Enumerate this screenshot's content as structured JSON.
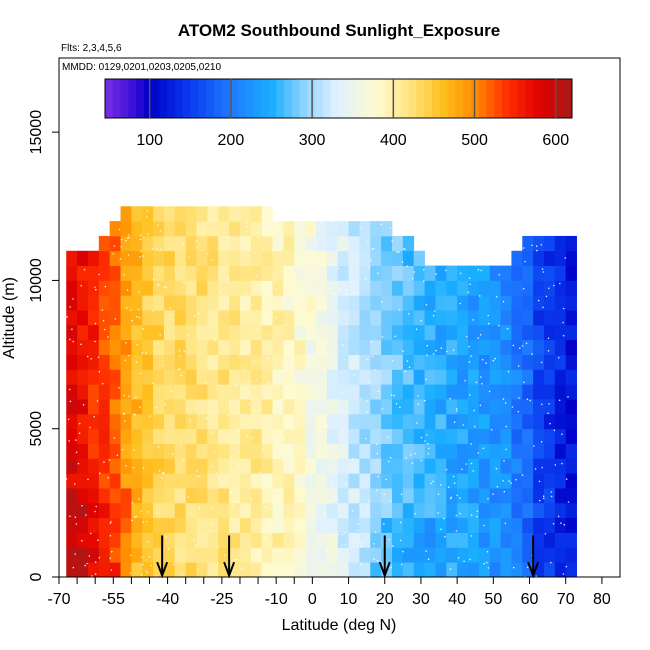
{
  "chart_data": {
    "type": "heatmap",
    "title": "ATOM2 Southbound Sunlight_Exposure",
    "subtitle_flights": "Flts: 2,3,4,5,6",
    "subtitle_dates": "MMDD: 0129,0201,0203,0205,0210",
    "xlabel": "Latitude (deg N)",
    "ylabel": "Altitude (m)",
    "xlim": [
      -70,
      85
    ],
    "ylim": [
      0,
      17500
    ],
    "x_ticks": [
      -70,
      -55,
      -40,
      -25,
      -10,
      0,
      10,
      20,
      30,
      40,
      50,
      60,
      70,
      80
    ],
    "x_tick_labels": [
      "-70",
      "-55",
      "-40",
      "-25",
      "-10",
      "0",
      "10",
      "20",
      "30",
      "40",
      "50",
      "60",
      "70",
      "80"
    ],
    "x_minor_ticks": [
      -65,
      -60,
      -50,
      -45,
      -35,
      -30,
      -20,
      -15,
      -5
    ],
    "y_ticks": [
      0,
      5000,
      10000,
      15000
    ],
    "y_tick_labels": [
      "0",
      "5000",
      "10000",
      "15000"
    ],
    "colorbar": {
      "min": 45,
      "max": 620,
      "ticks": [
        100,
        200,
        300,
        400,
        500,
        600
      ],
      "tick_labels": [
        "100",
        "200",
        "300",
        "400",
        "500",
        "600"
      ],
      "stops": [
        {
          "v": 45,
          "c": "#7b2fe6"
        },
        {
          "v": 80,
          "c": "#3a10d8"
        },
        {
          "v": 100,
          "c": "#0000c8"
        },
        {
          "v": 150,
          "c": "#0a3cf0"
        },
        {
          "v": 200,
          "c": "#1e7aff"
        },
        {
          "v": 250,
          "c": "#1aaeff"
        },
        {
          "v": 290,
          "c": "#8fd4ff"
        },
        {
          "v": 330,
          "c": "#dff1ff"
        },
        {
          "v": 380,
          "c": "#fffbd0"
        },
        {
          "v": 420,
          "c": "#ffe480"
        },
        {
          "v": 460,
          "c": "#ffc020"
        },
        {
          "v": 500,
          "c": "#ff8c00"
        },
        {
          "v": 540,
          "c": "#ff3000"
        },
        {
          "v": 580,
          "c": "#e00000"
        },
        {
          "v": 620,
          "c": "#a81a1a"
        }
      ]
    },
    "latitude_bins": {
      "start": -68,
      "end": 71,
      "step": 3
    },
    "altitude_bin_height_m": 500,
    "field_description_values": {
      "south_edge_value": 590,
      "lat_anchor": [
        -68,
        -55,
        -45,
        -30,
        -15,
        -5,
        5,
        15,
        25,
        35,
        45,
        55,
        62,
        71
      ],
      "value_anchor": [
        590,
        520,
        440,
        420,
        405,
        385,
        345,
        305,
        270,
        250,
        235,
        215,
        160,
        120
      ]
    },
    "top_altitude_profile": {
      "lat": [
        -68,
        -60,
        -55,
        -52,
        -45,
        -40,
        -35,
        -25,
        -15,
        -10,
        0,
        10,
        20,
        30,
        40,
        50,
        55,
        60,
        71
      ],
      "alt_top": [
        10500,
        11000,
        11500,
        12500,
        12500,
        12500,
        12500,
        12500,
        12500,
        12000,
        12000,
        12000,
        12000,
        10500,
        10500,
        10500,
        10500,
        11500,
        11500
      ]
    },
    "flight_markers_lat": [
      -41.5,
      -23,
      20,
      61
    ]
  }
}
